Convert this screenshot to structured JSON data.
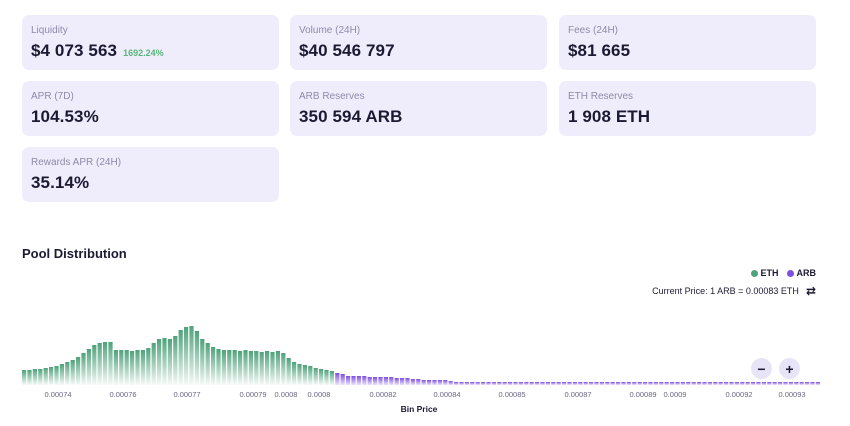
{
  "stats": [
    {
      "label": "Liquidity",
      "value": "$4 073 563",
      "change": "1692.24%"
    },
    {
      "label": "Volume (24H)",
      "value": "$40 546 797"
    },
    {
      "label": "Fees (24H)",
      "value": "$81 665"
    },
    {
      "label": "APR (7D)",
      "value": "104.53%"
    },
    {
      "label": "ARB Reserves",
      "value": "350 594 ARB"
    },
    {
      "label": "ETH Reserves",
      "value": "1 908 ETH"
    },
    {
      "label": "Rewards APR (24H)",
      "value": "35.14%"
    }
  ],
  "pool": {
    "title": "Pool Distribution",
    "legend": [
      {
        "name": "ETH",
        "color": "#4fa27b"
      },
      {
        "name": "ARB",
        "color": "#7e4fe0"
      }
    ],
    "current_price": "Current Price: 1 ARB = 0.00083 ETH",
    "swap_icon": "swap-arrows-icon",
    "zoom_out_label": "−",
    "zoom_in_label": "+"
  },
  "chart_data": {
    "type": "bar",
    "xlabel": "Bin Price",
    "x_ticks": [
      "0.00074",
      "0.00076",
      "0.00077",
      "0.00079",
      "0.0008",
      "0.0008",
      "0.00082",
      "0.00084",
      "0.00085",
      "0.00087",
      "0.00089",
      "0.0009",
      "0.00092",
      "0.00093"
    ],
    "series": [
      {
        "name": "ETH",
        "color": "#4fa27b",
        "values": [
          15,
          15,
          16,
          16,
          17,
          18,
          19,
          21,
          23,
          25,
          28,
          32,
          36,
          40,
          42,
          43,
          43,
          35,
          35,
          35,
          34,
          35,
          35,
          37,
          42,
          46,
          47,
          46,
          49,
          55,
          58,
          59,
          54,
          46,
          42,
          38,
          36,
          35,
          35,
          35,
          34,
          35,
          34,
          34,
          33,
          34,
          33,
          34,
          32,
          27,
          23,
          21,
          20,
          19,
          17,
          16,
          15,
          14
        ]
      },
      {
        "name": "ARB",
        "color": "#7e4fe0",
        "values": [
          12,
          11,
          9,
          9,
          9,
          9,
          8,
          8,
          8,
          8,
          8,
          7,
          7,
          7,
          6,
          6,
          5,
          5,
          5,
          5,
          5,
          4,
          3,
          3,
          3,
          3,
          3,
          3,
          3,
          3,
          3,
          3,
          3,
          3,
          3,
          3,
          3,
          3,
          3,
          3,
          3,
          3,
          3,
          3,
          3,
          3,
          3,
          3,
          3,
          3,
          3,
          3,
          3,
          3,
          3,
          3,
          3,
          3,
          3,
          3,
          3,
          3,
          3,
          3,
          3,
          3,
          3,
          3,
          3,
          3,
          3,
          3,
          3,
          3,
          3,
          3,
          3,
          3,
          3,
          3,
          3,
          3,
          3,
          3,
          3,
          3,
          3,
          3,
          3,
          3
        ]
      }
    ]
  }
}
